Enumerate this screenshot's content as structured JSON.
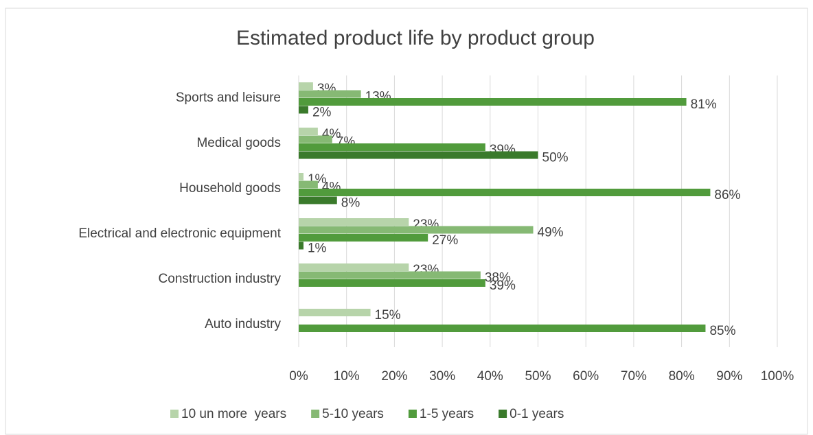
{
  "chart_data": {
    "type": "hbar",
    "title": "Estimated product life by product group",
    "categories": [
      "Sports and leisure",
      "Medical goods",
      "Household goods",
      "Electrical and electronic equipment",
      "Construction industry",
      "Auto industry"
    ],
    "series": [
      {
        "name": "10 un more  years",
        "color": "#b7d4aa",
        "values": [
          3,
          4,
          1,
          23,
          23,
          15
        ],
        "value_labels": [
          "3%",
          "4%",
          "1%",
          "23%",
          "23%",
          "15%"
        ]
      },
      {
        "name": "5-10 years",
        "color": "#86b974",
        "values": [
          13,
          7,
          4,
          49,
          38,
          null
        ],
        "value_labels": [
          "13%",
          "7%",
          "4%",
          "49%",
          "38%",
          null
        ]
      },
      {
        "name": "1-5 years",
        "color": "#519b3c",
        "values": [
          81,
          39,
          86,
          27,
          39,
          85
        ],
        "value_labels": [
          "81%",
          "39%",
          "86%",
          "27%",
          "39%",
          "85%"
        ]
      },
      {
        "name": "0-1 years",
        "color": "#3a7a2b",
        "values": [
          2,
          50,
          8,
          1,
          null,
          null
        ],
        "value_labels": [
          "2%",
          "50%",
          "8%",
          "1%",
          null,
          null
        ]
      }
    ],
    "xlim": [
      0,
      100
    ],
    "xticks": [
      {
        "value": 0,
        "label": "0%"
      },
      {
        "value": 10,
        "label": "10%"
      },
      {
        "value": 20,
        "label": "20%"
      },
      {
        "value": 30,
        "label": "30%"
      },
      {
        "value": 40,
        "label": "40%"
      },
      {
        "value": 50,
        "label": "50%"
      },
      {
        "value": 60,
        "label": "60%"
      },
      {
        "value": 70,
        "label": "70%"
      },
      {
        "value": 80,
        "label": "80%"
      },
      {
        "value": 90,
        "label": "90%"
      },
      {
        "value": 100,
        "label": "100%"
      }
    ],
    "grid": true,
    "legend": "bottom"
  }
}
